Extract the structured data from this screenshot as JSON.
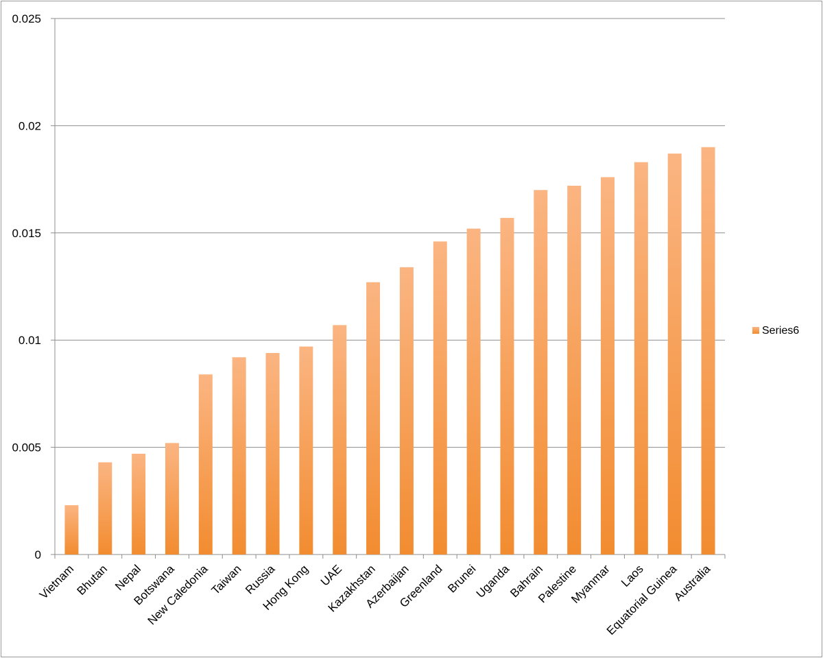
{
  "chart_data": {
    "type": "bar",
    "categories": [
      "Vietnam",
      "Bhutan",
      "Nepal",
      "Botswana",
      "New Caledonia",
      "Taiwan",
      "Russia",
      "Hong Kong",
      "UAE",
      "Kazakhstan",
      "Azerbaijan",
      "Greenland",
      "Brunei",
      "Uganda",
      "Bahrain",
      "Palestine",
      "Myanmar",
      "Laos",
      "Equatorial Guinea",
      "Australia"
    ],
    "series": [
      {
        "name": "Series6",
        "color": "#f28c30",
        "values": [
          0.0023,
          0.0043,
          0.0047,
          0.0052,
          0.0084,
          0.0092,
          0.0094,
          0.0097,
          0.0107,
          0.0127,
          0.0134,
          0.0146,
          0.0152,
          0.0157,
          0.017,
          0.0172,
          0.0176,
          0.0183,
          0.0187,
          0.019
        ]
      }
    ],
    "y_ticks": [
      "0",
      "0.005",
      "0.01",
      "0.015",
      "0.02",
      "0.025"
    ],
    "ylim": [
      0,
      0.025
    ],
    "grid": true,
    "legend": "right",
    "title": "",
    "xlabel": "",
    "ylabel": ""
  }
}
